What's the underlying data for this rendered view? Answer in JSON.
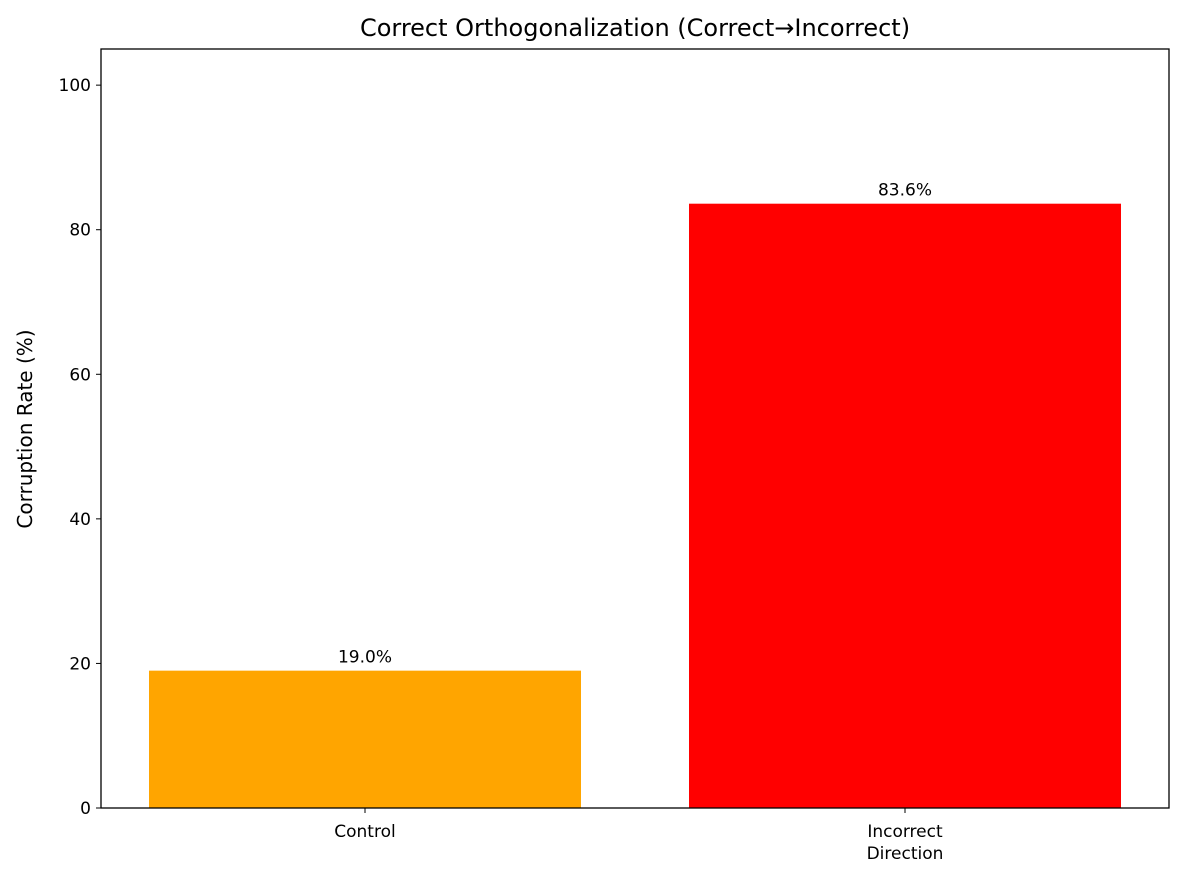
{
  "chart_data": {
    "type": "bar",
    "title": "Correct Orthogonalization (Correct→Incorrect)",
    "y_label": "Corruption Rate (%)",
    "categories": [
      "Control",
      "Incorrect\nDirection"
    ],
    "values": [
      19.0,
      83.6
    ],
    "value_labels": [
      "19.0%",
      "83.6%"
    ],
    "colors": [
      "orange",
      "red"
    ],
    "ylim": [
      0,
      105
    ],
    "yticks": [
      0,
      20,
      40,
      60,
      80,
      100
    ],
    "grid": false
  }
}
